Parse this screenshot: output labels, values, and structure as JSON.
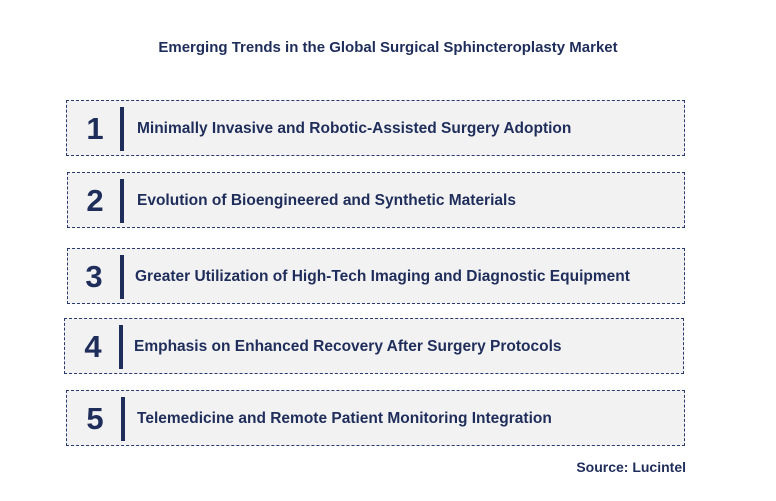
{
  "title": "Emerging Trends in the Global Surgical Sphincteroplasty Market",
  "trends": [
    {
      "number": "1",
      "label": "Minimally Invasive and Robotic-Assisted Surgery Adoption"
    },
    {
      "number": "2",
      "label": "Evolution of Bioengineered and Synthetic Materials"
    },
    {
      "number": "3",
      "label": "Greater Utilization of High-Tech Imaging and Diagnostic Equipment"
    },
    {
      "number": "4",
      "label": "Emphasis on Enhanced Recovery After Surgery Protocols"
    },
    {
      "number": "5",
      "label": "Telemedicine and Remote Patient Monitoring Integration"
    }
  ],
  "source": "Source: Lucintel",
  "colors": {
    "primary": "#1f2d5a",
    "box_fill": "#f2f2f2"
  }
}
